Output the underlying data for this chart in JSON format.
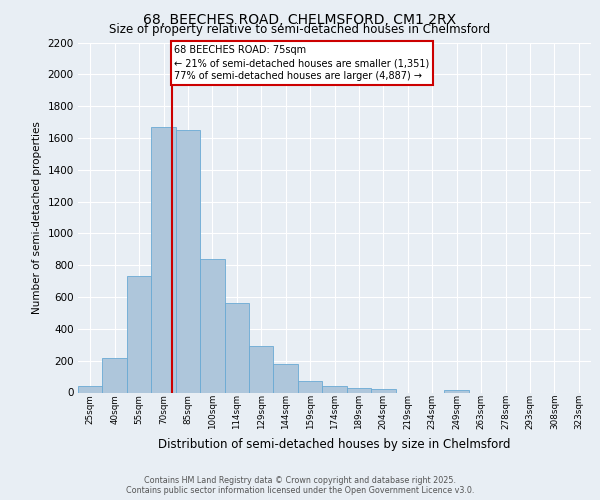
{
  "title1": "68, BEECHES ROAD, CHELMSFORD, CM1 2RX",
  "title2": "Size of property relative to semi-detached houses in Chelmsford",
  "xlabel": "Distribution of semi-detached houses by size in Chelmsford",
  "ylabel": "Number of semi-detached properties",
  "categories": [
    "25sqm",
    "40sqm",
    "55sqm",
    "70sqm",
    "85sqm",
    "100sqm",
    "114sqm",
    "129sqm",
    "144sqm",
    "159sqm",
    "174sqm",
    "189sqm",
    "204sqm",
    "219sqm",
    "234sqm",
    "249sqm",
    "263sqm",
    "278sqm",
    "293sqm",
    "308sqm",
    "323sqm"
  ],
  "values": [
    40,
    220,
    730,
    1670,
    1650,
    840,
    560,
    295,
    180,
    70,
    40,
    30,
    20,
    0,
    0,
    15,
    0,
    0,
    0,
    0,
    0
  ],
  "bar_color": "#aec6db",
  "bar_edge_color": "#6aaad4",
  "annotation_title": "68 BEECHES ROAD: 75sqm",
  "annotation_line1": "← 21% of semi-detached houses are smaller (1,351)",
  "annotation_line2": "77% of semi-detached houses are larger (4,887) →",
  "annotation_box_color": "#ffffff",
  "annotation_box_edge": "#cc0000",
  "vline_color": "#cc0000",
  "vline_x": 3.33,
  "ylim": [
    0,
    2200
  ],
  "yticks": [
    0,
    200,
    400,
    600,
    800,
    1000,
    1200,
    1400,
    1600,
    1800,
    2000,
    2200
  ],
  "footer1": "Contains HM Land Registry data © Crown copyright and database right 2025.",
  "footer2": "Contains public sector information licensed under the Open Government Licence v3.0.",
  "bg_color": "#e8eef4",
  "plot_bg_color": "#e8eef4",
  "grid_color": "#ffffff"
}
